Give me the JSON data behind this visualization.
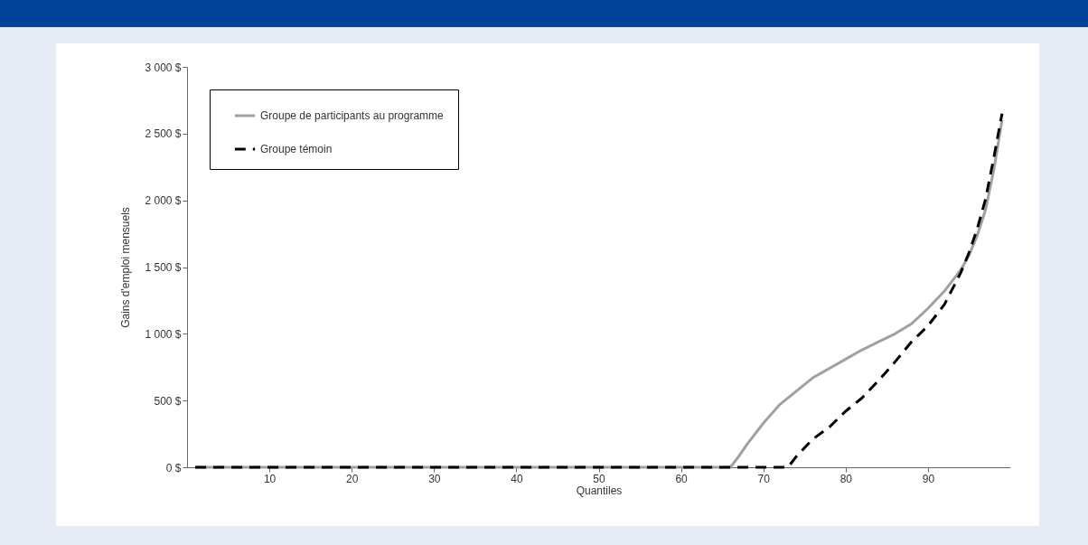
{
  "chart_data": {
    "type": "line",
    "xlabel": "Quantiles",
    "ylabel": "Gains d'emploi mensuels",
    "xlim": [
      0,
      100
    ],
    "ylim": [
      0,
      3000
    ],
    "xticks": [
      10,
      20,
      30,
      40,
      50,
      60,
      70,
      80,
      90
    ],
    "yticks": [
      {
        "value": 0,
        "label": "0 $"
      },
      {
        "value": 500,
        "label": "500 $"
      },
      {
        "value": 1000,
        "label": "1 000 $"
      },
      {
        "value": 1500,
        "label": "1 500 $"
      },
      {
        "value": 2000,
        "label": "2 000 $"
      },
      {
        "value": 2500,
        "label": "2 500 $"
      },
      {
        "value": 3000,
        "label": "3 000 $"
      }
    ],
    "grid": false,
    "legend": "top left",
    "marker": "none",
    "series": [
      {
        "name": "Groupe de participants au programme",
        "color": "#a0a0a0",
        "line_style": "solid",
        "x": [
          1,
          65,
          66,
          67,
          68,
          70,
          72,
          74,
          76,
          77,
          78,
          80,
          82,
          84,
          86,
          88,
          90,
          92,
          94,
          95,
          96,
          97,
          98,
          99
        ],
        "values": [
          0,
          0,
          0,
          80,
          170,
          330,
          470,
          570,
          670,
          705,
          740,
          810,
          880,
          940,
          1000,
          1075,
          1190,
          1320,
          1480,
          1590,
          1740,
          1930,
          2230,
          2600
        ]
      },
      {
        "name": "Groupe témoin",
        "color": "#000000",
        "line_style": "dashed",
        "x": [
          1,
          72,
          73,
          74,
          76,
          78,
          80,
          82,
          84,
          86,
          88,
          90,
          92,
          94,
          95,
          96,
          97,
          98,
          99
        ],
        "values": [
          0,
          0,
          0,
          80,
          210,
          300,
          420,
          520,
          650,
          790,
          940,
          1060,
          1220,
          1460,
          1610,
          1790,
          2010,
          2320,
          2650
        ]
      }
    ]
  }
}
